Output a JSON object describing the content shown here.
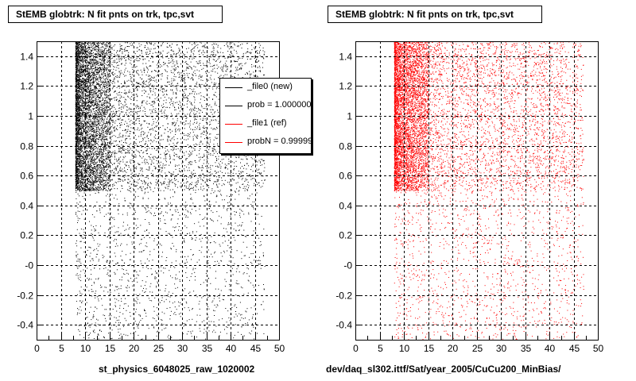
{
  "titles": {
    "left": "StEMB globtrk: N fit pnts on trk, tpc,svt",
    "right": "StEMB globtrk: N fit pnts on trk, tpc,svt"
  },
  "xtitles": {
    "left": "st_physics_6048025_raw_1020002",
    "right": "dev/daq_sl302.ittf/Sat/year_2005/CuCu200_MinBias/"
  },
  "footer": "",
  "legend": [
    {
      "label": "_file0 (new)",
      "color": "#000000"
    },
    {
      "label": "prob = 1.000000",
      "color": "#000000"
    },
    {
      "label": "_file1 (ref)",
      "color": "#ff0000"
    },
    {
      "label": "probN = 0.999990",
      "color": "#ff0000"
    }
  ],
  "chart_data": [
    {
      "type": "scatter",
      "color": "#000000",
      "title": "StEMB globtrk: N fit pnts on trk, tpc,svt",
      "xlabel": "st_physics_6048025_raw_1020002",
      "xlim": [
        0,
        50
      ],
      "ylim": [
        -0.5,
        1.5
      ],
      "x_ticks": [
        0,
        5,
        10,
        15,
        20,
        25,
        30,
        35,
        40,
        45,
        50
      ],
      "y_ticks": [
        -0.4,
        -0.2,
        0,
        0.2,
        0.4,
        0.6,
        0.8,
        1,
        1.2,
        1.4
      ],
      "y_tick_labels": [
        "-0.4",
        "-0.2",
        "-0",
        "0.2",
        "0.4",
        "0.6",
        "0.8",
        "1",
        "1.2",
        "1.4"
      ],
      "grid": true,
      "description_regions": [
        {
          "x": [
            8,
            15
          ],
          "y": [
            0.5,
            1.5
          ],
          "density": "very high"
        },
        {
          "x": [
            15,
            47
          ],
          "y": [
            0.5,
            1.5
          ],
          "density": "medium"
        },
        {
          "x": [
            8,
            47
          ],
          "y": [
            -0.5,
            0.5
          ],
          "density": "low"
        }
      ]
    },
    {
      "type": "scatter",
      "color": "#ff0000",
      "title": "StEMB globtrk: N fit pnts on trk, tpc,svt",
      "xlabel": "dev/daq_sl302.ittf/Sat/year_2005/CuCu200_MinBias/",
      "xlim": [
        0,
        50
      ],
      "ylim": [
        -0.5,
        1.5
      ],
      "x_ticks": [
        0,
        5,
        10,
        15,
        20,
        25,
        30,
        35,
        40,
        45,
        50
      ],
      "y_ticks": [
        -0.4,
        -0.2,
        0,
        0.2,
        0.4,
        0.6,
        0.8,
        1,
        1.2,
        1.4
      ],
      "y_tick_labels": [
        "-0.4",
        "-0.2",
        "-0",
        "0.2",
        "0.4",
        "0.6",
        "0.8",
        "1",
        "1.2",
        "1.4"
      ],
      "grid": true,
      "description_regions": [
        {
          "x": [
            8,
            15
          ],
          "y": [
            0.5,
            1.5
          ],
          "density": "very high"
        },
        {
          "x": [
            15,
            47
          ],
          "y": [
            0.5,
            1.5
          ],
          "density": "medium"
        },
        {
          "x": [
            8,
            47
          ],
          "y": [
            -0.5,
            0.5
          ],
          "density": "low"
        }
      ]
    }
  ]
}
